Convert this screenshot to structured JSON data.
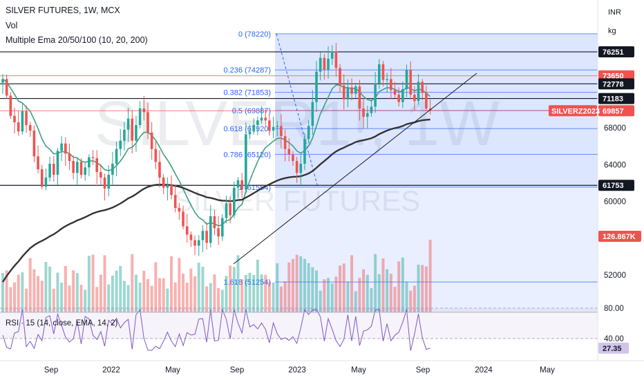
{
  "header": {
    "title": "SILVER FUTURES, 1W, MCX",
    "vol": "Vol",
    "ema": "Multiple Ema 20/50/100 (10, 20, 200)"
  },
  "units": {
    "currency": "INR",
    "weight": "kg"
  },
  "watermark": {
    "symbol": "SILVER1!, 1W",
    "name": "SILVER FUTURES"
  },
  "rsi_panel": {
    "legend": "RSI · 15 (14, close, EMA, 14, 2)",
    "levels": [
      "80.00",
      "40.00"
    ],
    "current": "27.35"
  },
  "colors": {
    "up": "#26a69a",
    "down": "#ef5350",
    "fib": "#2962ff",
    "tag": "#ef5350",
    "ema_fast": "#3f9f7f",
    "ema_slow": "#333333",
    "rsi": "#7e57c2"
  },
  "chart_data": {
    "type": "candlestick",
    "title": "SILVER FUTURES, 1W, MCX",
    "y_range": [
      47000,
      82000
    ],
    "x_labels": [
      "Sep",
      "2022",
      "May",
      "Sep",
      "2023",
      "May",
      "Sep",
      "2024",
      "May"
    ],
    "y_ticks": [
      "68000",
      "64000",
      "60000",
      "52000"
    ],
    "price_tags": [
      {
        "label": "76251",
        "value": 76251,
        "style": "dark"
      },
      {
        "label": "73650",
        "value": 73650,
        "style": "red"
      },
      {
        "label": "72778",
        "value": 72778,
        "style": "dark"
      },
      {
        "label": "71183",
        "value": 71183,
        "style": "dark"
      },
      {
        "label": "69857",
        "value": 69857,
        "style": "red"
      },
      {
        "label": "61753",
        "value": 61753,
        "style": "dark"
      }
    ],
    "symbol_tag": "SILVERZ2023",
    "volume_tag": "126.867K",
    "fibonacci": [
      {
        "label": "0 (78220)",
        "ratio": 0,
        "value": 78220
      },
      {
        "label": "0.236 (74287)",
        "ratio": 0.236,
        "value": 74287
      },
      {
        "label": "0.382 (71853)",
        "ratio": 0.382,
        "value": 71853
      },
      {
        "label": "0.5 (69887)",
        "ratio": 0.5,
        "value": 69887
      },
      {
        "label": "0.618 (67920)",
        "ratio": 0.618,
        "value": 67920
      },
      {
        "label": "0.786 (65120)",
        "ratio": 0.786,
        "value": 65120
      },
      {
        "label": "1 (61554)",
        "ratio": 1,
        "value": 61554
      },
      {
        "label": "1.618 (51254)",
        "ratio": 1.618,
        "value": 51254
      }
    ],
    "weekly_close": [
      73300,
      71500,
      69300,
      68600,
      67600,
      69800,
      68300,
      67700,
      64900,
      63500,
      61600,
      62600,
      64100,
      62900,
      65500,
      66300,
      65200,
      64400,
      63100,
      64300,
      62900,
      63700,
      64800,
      64700,
      63200,
      62600,
      61400,
      62900,
      64100,
      65700,
      66600,
      67800,
      69000,
      66600,
      68300,
      70100,
      69700,
      67500,
      65700,
      64300,
      62600,
      61500,
      61800,
      60700,
      59300,
      58900,
      57300,
      56400,
      55800,
      55200,
      55800,
      56800,
      55500,
      58400,
      57100,
      56200,
      58200,
      59800,
      58500,
      61500,
      62300,
      61300,
      67300,
      67600,
      68300,
      68800,
      69100,
      68800,
      67700,
      68100,
      68200,
      67100,
      65700,
      65100,
      64400,
      63100,
      64100,
      66800,
      68200,
      70800,
      74100,
      75600,
      74300,
      75500,
      76300,
      74500,
      72600,
      71100,
      72400,
      71700,
      72500,
      70100,
      69200,
      69600,
      70300,
      72800,
      74900,
      73200,
      73300,
      72100,
      71600,
      70800,
      72200,
      74300,
      71600,
      70900,
      73000,
      71800,
      70100,
      69857
    ]
  }
}
